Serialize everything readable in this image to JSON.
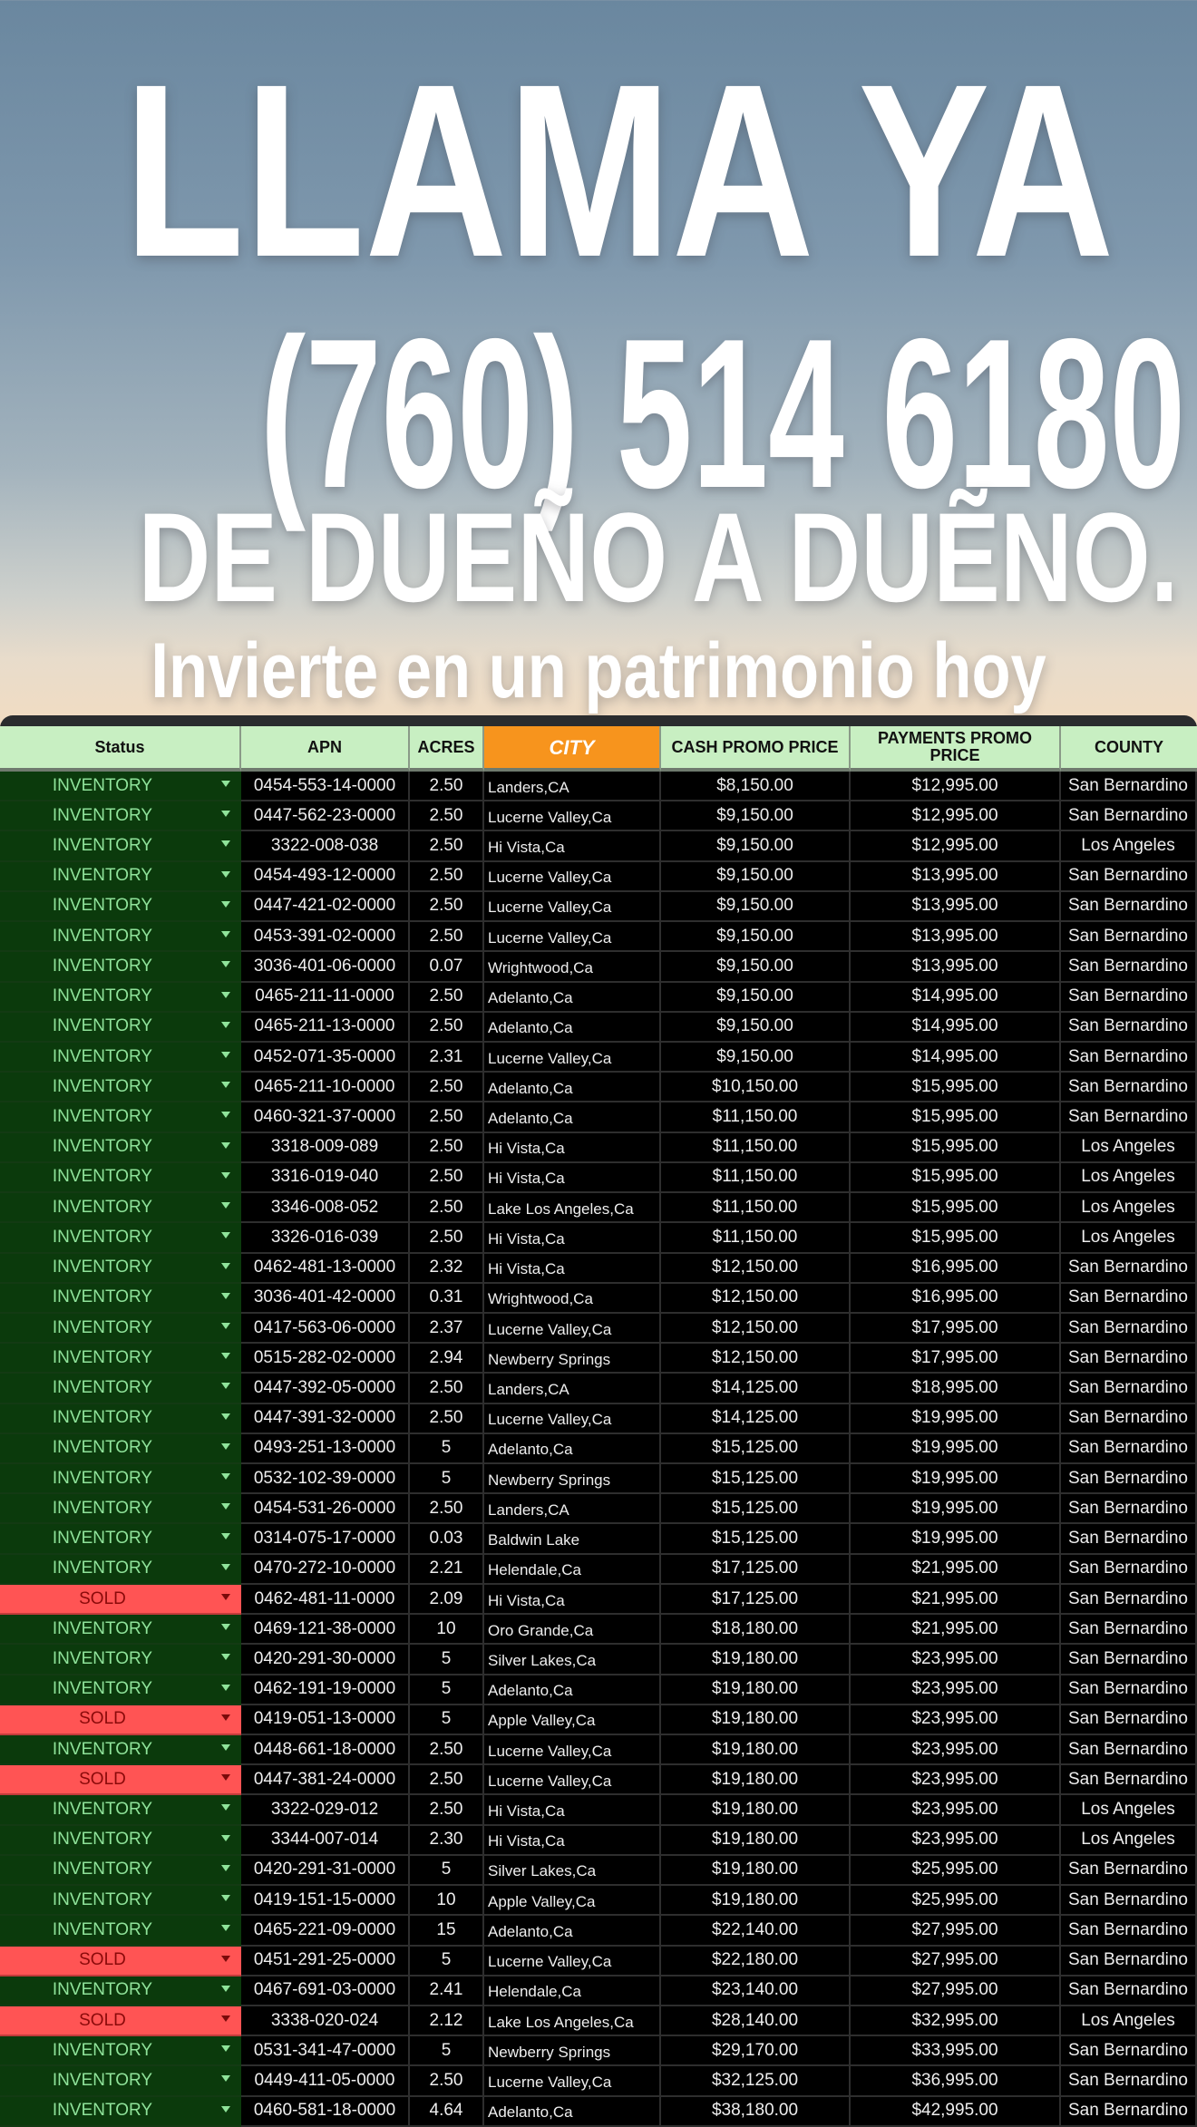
{
  "hero": {
    "line1": "LLAMA YA",
    "phone": "(760) 514 6180",
    "line3": "DE DUEÑO A DUẼNO.",
    "line4": "Invierte en un patrimonio hoy"
  },
  "colors": {
    "status_inventory_bg": "#0b3a0c",
    "status_inventory_text": "#8fe39a",
    "status_sold_bg": "#ff5454",
    "status_sold_text": "#8a0a0a",
    "header_bg": "#c8efc2",
    "city_header_bg": "#f7941d"
  },
  "table": {
    "headers": [
      "Status",
      "APN",
      "ACRES",
      "CITY",
      "CASH PROMO PRICE",
      "PAYMENTS PROMO PRICE",
      "COUNTY"
    ],
    "rows": [
      [
        "INVENTORY",
        "0454-553-14-0000",
        "2.50",
        "Landers,CA",
        "$8,150.00",
        "$12,995.00",
        "San Bernardino"
      ],
      [
        "INVENTORY",
        "0447-562-23-0000",
        "2.50",
        "Lucerne Valley,Ca",
        "$9,150.00",
        "$12,995.00",
        "San Bernardino"
      ],
      [
        "INVENTORY",
        "3322-008-038",
        "2.50",
        "Hi Vista,Ca",
        "$9,150.00",
        "$12,995.00",
        "Los Angeles"
      ],
      [
        "INVENTORY",
        "0454-493-12-0000",
        "2.50",
        "Lucerne Valley,Ca",
        "$9,150.00",
        "$13,995.00",
        "San Bernardino"
      ],
      [
        "INVENTORY",
        "0447-421-02-0000",
        "2.50",
        "Lucerne Valley,Ca",
        "$9,150.00",
        "$13,995.00",
        "San Bernardino"
      ],
      [
        "INVENTORY",
        "0453-391-02-0000",
        "2.50",
        "Lucerne Valley,Ca",
        "$9,150.00",
        "$13,995.00",
        "San Bernardino"
      ],
      [
        "INVENTORY",
        "3036-401-06-0000",
        "0.07",
        "Wrightwood,Ca",
        "$9,150.00",
        "$13,995.00",
        "San Bernardino"
      ],
      [
        "INVENTORY",
        "0465-211-11-0000",
        "2.50",
        "Adelanto,Ca",
        "$9,150.00",
        "$14,995.00",
        "San Bernardino"
      ],
      [
        "INVENTORY",
        "0465-211-13-0000",
        "2.50",
        "Adelanto,Ca",
        "$9,150.00",
        "$14,995.00",
        "San Bernardino"
      ],
      [
        "INVENTORY",
        "0452-071-35-0000",
        "2.31",
        "Lucerne Valley,Ca",
        "$9,150.00",
        "$14,995.00",
        "San Bernardino"
      ],
      [
        "INVENTORY",
        "0465-211-10-0000",
        "2.50",
        "Adelanto,Ca",
        "$10,150.00",
        "$15,995.00",
        "San Bernardino"
      ],
      [
        "INVENTORY",
        "0460-321-37-0000",
        "2.50",
        "Adelanto,Ca",
        "$11,150.00",
        "$15,995.00",
        "San Bernardino"
      ],
      [
        "INVENTORY",
        "3318-009-089",
        "2.50",
        "Hi Vista,Ca",
        "$11,150.00",
        "$15,995.00",
        "Los Angeles"
      ],
      [
        "INVENTORY",
        "3316-019-040",
        "2.50",
        "Hi Vista,Ca",
        "$11,150.00",
        "$15,995.00",
        "Los Angeles"
      ],
      [
        "INVENTORY",
        "3346-008-052",
        "2.50",
        "Lake Los Angeles,Ca",
        "$11,150.00",
        "$15,995.00",
        "Los Angeles"
      ],
      [
        "INVENTORY",
        "3326-016-039",
        "2.50",
        "Hi Vista,Ca",
        "$11,150.00",
        "$15,995.00",
        "Los Angeles"
      ],
      [
        "INVENTORY",
        "0462-481-13-0000",
        "2.32",
        "Hi Vista,Ca",
        "$12,150.00",
        "$16,995.00",
        "San Bernardino"
      ],
      [
        "INVENTORY",
        "3036-401-42-0000",
        "0.31",
        "Wrightwood,Ca",
        "$12,150.00",
        "$16,995.00",
        "San Bernardino"
      ],
      [
        "INVENTORY",
        "0417-563-06-0000",
        "2.37",
        "Lucerne Valley,Ca",
        "$12,150.00",
        "$17,995.00",
        "San Bernardino"
      ],
      [
        "INVENTORY",
        "0515-282-02-0000",
        "2.94",
        "Newberry Springs",
        "$12,150.00",
        "$17,995.00",
        "San Bernardino"
      ],
      [
        "INVENTORY",
        "0447-392-05-0000",
        "2.50",
        "Landers,CA",
        "$14,125.00",
        "$18,995.00",
        "San Bernardino"
      ],
      [
        "INVENTORY",
        "0447-391-32-0000",
        "2.50",
        "Lucerne Valley,Ca",
        "$14,125.00",
        "$19,995.00",
        "San Bernardino"
      ],
      [
        "INVENTORY",
        "0493-251-13-0000",
        "5",
        "Adelanto,Ca",
        "$15,125.00",
        "$19,995.00",
        "San Bernardino"
      ],
      [
        "INVENTORY",
        "0532-102-39-0000",
        "5",
        "Newberry Springs",
        "$15,125.00",
        "$19,995.00",
        "San Bernardino"
      ],
      [
        "INVENTORY",
        "0454-531-26-0000",
        "2.50",
        "Landers,CA",
        "$15,125.00",
        "$19,995.00",
        "San Bernardino"
      ],
      [
        "INVENTORY",
        "0314-075-17-0000",
        "0.03",
        "Baldwin Lake",
        "$15,125.00",
        "$19,995.00",
        "San Bernardino"
      ],
      [
        "INVENTORY",
        "0470-272-10-0000",
        "2.21",
        "Helendale,Ca",
        "$17,125.00",
        "$21,995.00",
        "San Bernardino"
      ],
      [
        "SOLD",
        "0462-481-11-0000",
        "2.09",
        "Hi Vista,Ca",
        "$17,125.00",
        "$21,995.00",
        "San Bernardino"
      ],
      [
        "INVENTORY",
        "0469-121-38-0000",
        "10",
        "Oro Grande,Ca",
        "$18,180.00",
        "$21,995.00",
        "San Bernardino"
      ],
      [
        "INVENTORY",
        "0420-291-30-0000",
        "5",
        "Silver Lakes,Ca",
        "$19,180.00",
        "$23,995.00",
        "San Bernardino"
      ],
      [
        "INVENTORY",
        "0462-191-19-0000",
        "5",
        "Adelanto,Ca",
        "$19,180.00",
        "$23,995.00",
        "San Bernardino"
      ],
      [
        "SOLD",
        "0419-051-13-0000",
        "5",
        "Apple Valley,Ca",
        "$19,180.00",
        "$23,995.00",
        "San Bernardino"
      ],
      [
        "INVENTORY",
        "0448-661-18-0000",
        "2.50",
        "Lucerne Valley,Ca",
        "$19,180.00",
        "$23,995.00",
        "San Bernardino"
      ],
      [
        "SOLD",
        "0447-381-24-0000",
        "2.50",
        "Lucerne Valley,Ca",
        "$19,180.00",
        "$23,995.00",
        "San Bernardino"
      ],
      [
        "INVENTORY",
        "3322-029-012",
        "2.50",
        "Hi Vista,Ca",
        "$19,180.00",
        "$23,995.00",
        "Los Angeles"
      ],
      [
        "INVENTORY",
        "3344-007-014",
        "2.30",
        "Hi Vista,Ca",
        "$19,180.00",
        "$23,995.00",
        "Los Angeles"
      ],
      [
        "INVENTORY",
        "0420-291-31-0000",
        "5",
        "Silver Lakes,Ca",
        "$19,180.00",
        "$25,995.00",
        "San Bernardino"
      ],
      [
        "INVENTORY",
        "0419-151-15-0000",
        "10",
        "Apple Valley,Ca",
        "$19,180.00",
        "$25,995.00",
        "San Bernardino"
      ],
      [
        "INVENTORY",
        "0465-221-09-0000",
        "15",
        "Adelanto,Ca",
        "$22,140.00",
        "$27,995.00",
        "San Bernardino"
      ],
      [
        "SOLD",
        "0451-291-25-0000",
        "5",
        "Lucerne Valley,Ca",
        "$22,180.00",
        "$27,995.00",
        "San Bernardino"
      ],
      [
        "INVENTORY",
        "0467-691-03-0000",
        "2.41",
        "Helendale,Ca",
        "$23,140.00",
        "$27,995.00",
        "San Bernardino"
      ],
      [
        "SOLD",
        "3338-020-024",
        "2.12",
        "Lake Los Angeles,Ca",
        "$28,140.00",
        "$32,995.00",
        "Los Angeles"
      ],
      [
        "INVENTORY",
        "0531-341-47-0000",
        "5",
        "Newberry Springs",
        "$29,170.00",
        "$33,995.00",
        "San Bernardino"
      ],
      [
        "INVENTORY",
        "0449-411-05-0000",
        "2.50",
        "Lucerne Valley,Ca",
        "$32,125.00",
        "$36,995.00",
        "San Bernardino"
      ],
      [
        "INVENTORY",
        "0460-581-18-0000",
        "4.64",
        "Adelanto,Ca",
        "$38,180.00",
        "$42,995.00",
        "San Bernardino"
      ]
    ]
  }
}
